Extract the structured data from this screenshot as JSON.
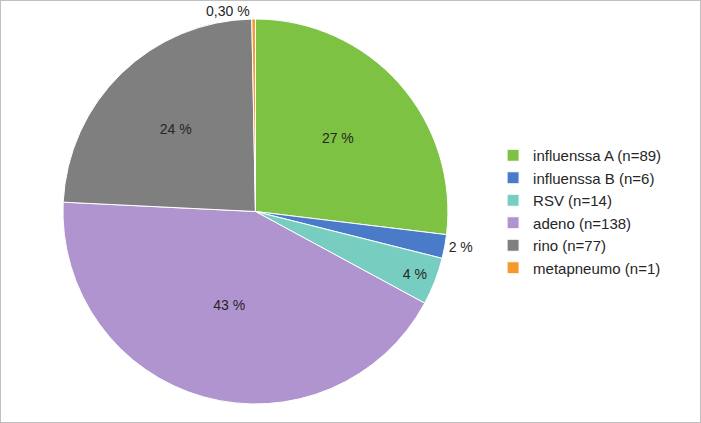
{
  "chart_data": {
    "type": "pie",
    "categories": [
      "influenssa A (n=89)",
      "influenssa B (n=6)",
      "RSV (n=14)",
      "adeno (n=138)",
      "rino (n=77)",
      "metapneumo (n=1)"
    ],
    "values": [
      27,
      2,
      4,
      43,
      24,
      0.3
    ],
    "value_labels": [
      "27 %",
      "2 %",
      "4 %",
      "43 %",
      "24 %",
      "0,30 %"
    ],
    "colors": [
      "#7dc242",
      "#4a7bc8",
      "#77cdc0",
      "#b094d0",
      "#7f7f7f",
      "#f5992c"
    ],
    "data_labels": true,
    "legend": "right"
  }
}
